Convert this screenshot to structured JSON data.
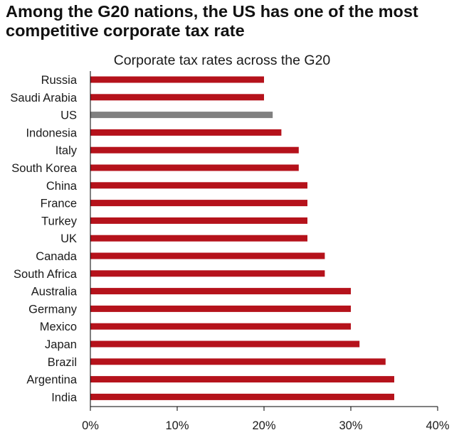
{
  "headline": "Among the G20 nations, the US has one of the most competitive corporate tax rate",
  "colors": {
    "bar": "#B5121B",
    "highlight": "#808080",
    "axis": "#000000",
    "text": "#1a1a1a"
  },
  "chart_data": {
    "type": "bar",
    "orientation": "horizontal",
    "title": "Corporate tax rates across the G20",
    "xlabel": "",
    "ylabel": "",
    "xlim": [
      0,
      40
    ],
    "xticks": [
      0,
      10,
      20,
      30,
      40
    ],
    "tick_suffix": "%",
    "grid": false,
    "legend": "none",
    "highlight": "US",
    "categories": [
      "Russia",
      "Saudi Arabia",
      "US",
      "Indonesia",
      "Italy",
      "South Korea",
      "China",
      "France",
      "Turkey",
      "UK",
      "Canada",
      "South Africa",
      "Australia",
      "Germany",
      "Mexico",
      "Japan",
      "Brazil",
      "Argentina",
      "India"
    ],
    "values": [
      20,
      20,
      21,
      22,
      24,
      24,
      25,
      25,
      25,
      25,
      27,
      27,
      30,
      30,
      30,
      31,
      34,
      35,
      35
    ]
  }
}
